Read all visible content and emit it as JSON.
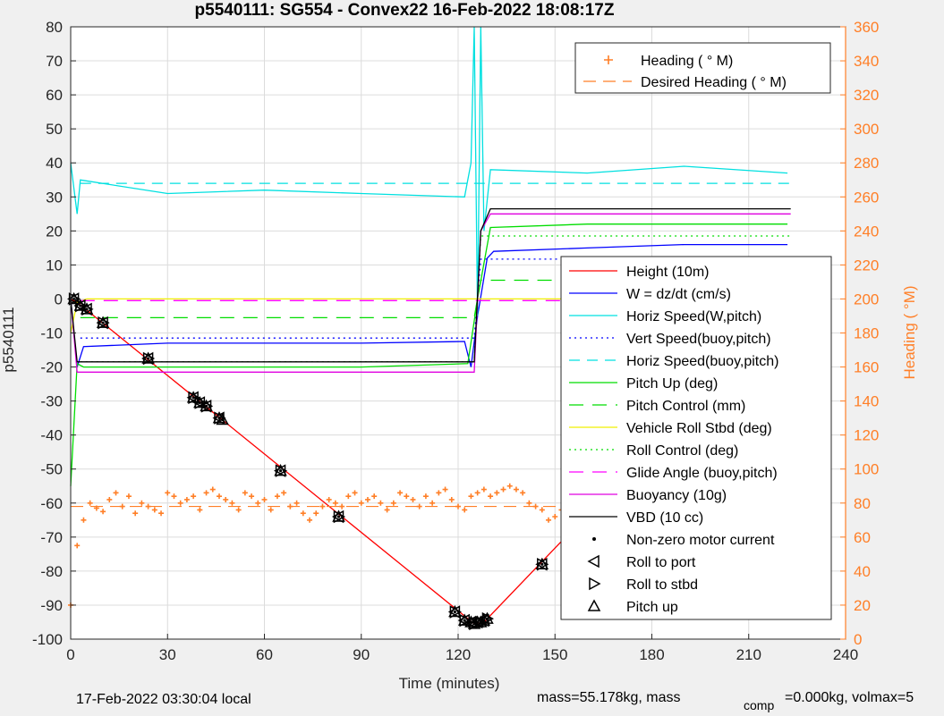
{
  "footer": {
    "local_time": "17-Feb-2022 03:30:04 local",
    "mass_text": "mass=55.178kg, mass",
    "comp_sub": "comp",
    "volmax_text": "=0.000kg, volmax=5"
  },
  "chart_data": {
    "type": "line",
    "title": "p5540111: SG554 - Convex22 16-Feb-2022 18:08:17Z",
    "xlabel": "Time (minutes)",
    "ylabel": "p5540111",
    "y2label": "Heading (  °M)",
    "xlim": [
      0,
      240
    ],
    "ylim": [
      -100,
      80
    ],
    "y2lim": [
      0,
      360
    ],
    "xticks": [
      "0",
      "30",
      "60",
      "90",
      "120",
      "150",
      "180",
      "210",
      "240"
    ],
    "yticks": [
      "80",
      "70",
      "60",
      "50",
      "40",
      "30",
      "20",
      "10",
      "0",
      "-10",
      "-20",
      "-30",
      "-40",
      "-50",
      "-60",
      "-70",
      "-80",
      "-90",
      "-100"
    ],
    "y2ticks": [
      "360",
      "340",
      "320",
      "300",
      "280",
      "260",
      "240",
      "220",
      "200",
      "180",
      "160",
      "140",
      "120",
      "100",
      "80",
      "60",
      "40",
      "20",
      "0"
    ],
    "grid": true,
    "colors": {
      "height": "#ff0000",
      "w": "#0000ff",
      "horiz_speed": "#00e0e0",
      "pitch": "#00dd00",
      "roll": "#f0f000",
      "glide": "#ff00ff",
      "buoyancy": "#e000e0",
      "vbd": "#000000",
      "heading": "#ff7f27",
      "right_axis": "#ff7f27"
    },
    "legend_top": {
      "placement": "top-right",
      "entries": [
        "Heading (  ° M)",
        "Desired Heading (    ° M)"
      ]
    },
    "legend_main": {
      "placement": "center-right",
      "entries": [
        "Height (10m)",
        "W = dz/dt (cm/s)",
        "Horiz Speed(W,pitch)",
        "Vert Speed(buoy,pitch)",
        "Horiz Speed(buoy,pitch)",
        "Pitch Up (deg)",
        "Pitch Control (mm)",
        "Vehicle Roll Stbd (deg)",
        "Roll Control (deg)",
        "Glide Angle (buoy,pitch)",
        "Buoyancy (10g)",
        "VBD (10 cc)",
        "Non-zero motor current",
        "Roll to port",
        "Roll to stbd",
        "Pitch up"
      ]
    },
    "series": [
      {
        "name": "Height (10m)",
        "x": [
          0,
          2,
          125,
          128,
          223
        ],
        "y": [
          0,
          -1,
          -95.5,
          -95,
          -1
        ]
      },
      {
        "name": "W = dz/dt (cm/s)",
        "x": [
          0,
          2,
          4,
          30,
          60,
          90,
          122,
          124,
          126,
          129,
          131,
          160,
          190,
          222
        ],
        "y": [
          0,
          -20,
          -14,
          -13,
          -13,
          -13,
          -12.5,
          -20,
          -5,
          12,
          14,
          15,
          16,
          16
        ]
      },
      {
        "name": "Horiz Speed(W,pitch)",
        "x": [
          0,
          2,
          3,
          30,
          60,
          90,
          122,
          124,
          125,
          126,
          127,
          128,
          130,
          160,
          190,
          222
        ],
        "y": [
          40,
          25,
          35,
          31,
          32,
          31,
          30,
          40,
          80,
          -5,
          80,
          20,
          38,
          37,
          39,
          37
        ]
      },
      {
        "name": "Vert Speed(buoy,pitch)",
        "x": [
          3,
          125,
          127,
          223
        ],
        "y": [
          -11.5,
          -11.5,
          11.7,
          11.7
        ]
      },
      {
        "name": "Horiz Speed(buoy,pitch)",
        "x": [
          3,
          125,
          127,
          223
        ],
        "y": [
          34,
          34,
          34,
          34
        ]
      },
      {
        "name": "Pitch Up (deg)",
        "x": [
          0,
          2,
          4,
          30,
          60,
          90,
          123,
          126,
          130,
          160,
          190,
          222
        ],
        "y": [
          -55,
          -19,
          -20,
          -20,
          -20,
          -20,
          -19,
          0,
          21,
          22,
          22,
          22
        ]
      },
      {
        "name": "Pitch Control (mm)",
        "x": [
          3,
          125,
          127,
          223
        ],
        "y": [
          -5.5,
          -5.5,
          5.5,
          5.5
        ]
      },
      {
        "name": "Vehicle Roll Stbd (deg)",
        "x": [
          0,
          2,
          5,
          30,
          60,
          90,
          120,
          125,
          130,
          160,
          190,
          222
        ],
        "y": [
          -10,
          -1,
          0,
          0,
          0,
          0,
          0,
          0,
          0,
          0,
          0,
          0
        ]
      },
      {
        "name": "Roll Control (deg)",
        "x": [
          3,
          125,
          127,
          223
        ],
        "y": [
          -18.5,
          -18.5,
          18.5,
          18.5
        ]
      },
      {
        "name": "Glide Angle (buoy,pitch)",
        "x": [
          3,
          223
        ],
        "y": [
          -0.5,
          -0.5
        ]
      },
      {
        "name": "Buoyancy (10g)",
        "x": [
          0,
          2,
          125,
          127,
          130,
          223
        ],
        "y": [
          0,
          -21.5,
          -21.5,
          20,
          25,
          25
        ]
      },
      {
        "name": "VBD (10 cc)",
        "x": [
          0,
          2,
          3,
          125,
          127,
          130,
          223
        ],
        "y": [
          0,
          -18.5,
          -18.5,
          -18.5,
          20,
          26.5,
          26.5
        ]
      }
    ],
    "heading": {
      "name": "Heading (  ° M)",
      "x": [
        0,
        2,
        4,
        6,
        8,
        10,
        12,
        14,
        16,
        18,
        20,
        22,
        24,
        26,
        28,
        30,
        32,
        34,
        36,
        38,
        40,
        42,
        44,
        46,
        48,
        50,
        52,
        54,
        56,
        58,
        60,
        62,
        64,
        66,
        68,
        70,
        72,
        74,
        76,
        78,
        80,
        82,
        84,
        86,
        88,
        90,
        92,
        94,
        96,
        98,
        100,
        102,
        104,
        106,
        108,
        110,
        112,
        114,
        116,
        118,
        120,
        122,
        124,
        126,
        128,
        130,
        132,
        134,
        136,
        138,
        140,
        142,
        144,
        146,
        148,
        150,
        152,
        154,
        156,
        158,
        160,
        162,
        164,
        166,
        168,
        170,
        172,
        174,
        176,
        178,
        180,
        182,
        184,
        186,
        188,
        190,
        192,
        194,
        196,
        198,
        200,
        202,
        204,
        206,
        208,
        210,
        212,
        214,
        216,
        218,
        220,
        222
      ],
      "y": [
        20,
        55,
        70,
        80,
        77,
        75,
        82,
        86,
        78,
        84,
        74,
        80,
        78,
        76,
        74,
        86,
        84,
        80,
        82,
        84,
        76,
        86,
        88,
        84,
        82,
        80,
        76,
        86,
        84,
        80,
        82,
        76,
        84,
        86,
        78,
        80,
        74,
        70,
        74,
        78,
        82,
        80,
        78,
        84,
        86,
        80,
        82,
        84,
        80,
        76,
        80,
        86,
        84,
        82,
        78,
        84,
        80,
        86,
        88,
        82,
        78,
        76,
        84,
        86,
        88,
        84,
        86,
        88,
        90,
        88,
        86,
        80,
        78,
        76,
        70,
        72,
        76,
        78,
        70,
        74,
        84,
        86,
        84,
        86,
        88,
        84,
        86,
        88,
        84,
        82,
        84,
        86,
        84,
        86,
        88,
        86,
        82,
        84,
        80,
        84,
        86,
        84,
        82,
        86,
        84,
        86,
        82,
        84,
        82,
        76,
        80,
        88
      ]
    },
    "desired_heading": {
      "name": "Desired Heading (    ° M)",
      "x": [
        0,
        223
      ],
      "y": [
        78,
        78
      ]
    },
    "markers": {
      "pitch_up": [
        [
          1,
          0
        ],
        [
          3,
          -2
        ],
        [
          5,
          -3
        ],
        [
          10,
          -7
        ],
        [
          24,
          -17.5
        ],
        [
          38,
          -29
        ],
        [
          40,
          -30.5
        ],
        [
          42,
          -31.5
        ],
        [
          46,
          -35
        ],
        [
          47,
          -35.5
        ],
        [
          65,
          -50.5
        ],
        [
          83,
          -64
        ],
        [
          119,
          -92
        ],
        [
          122,
          -94.5
        ],
        [
          124,
          -95
        ],
        [
          125,
          -95.5
        ],
        [
          126,
          -95
        ],
        [
          127,
          -95
        ],
        [
          128,
          -94.5
        ],
        [
          129,
          -94
        ],
        [
          146,
          -78
        ],
        [
          157,
          -67.5
        ],
        [
          168,
          -55.5
        ],
        [
          179,
          -44
        ],
        [
          186,
          -37.5
        ],
        [
          196,
          -27.5
        ],
        [
          200,
          -22
        ],
        [
          202,
          -20
        ],
        [
          204,
          -18.5
        ],
        [
          213,
          -8.5
        ],
        [
          221,
          -1.5
        ]
      ],
      "roll_port": [
        [
          1,
          0
        ],
        [
          3,
          -2
        ],
        [
          5,
          -3
        ],
        [
          10,
          -7
        ],
        [
          24,
          -17.5
        ],
        [
          38,
          -29
        ],
        [
          40,
          -30.5
        ],
        [
          42,
          -31.5
        ],
        [
          46,
          -35
        ],
        [
          65,
          -50.5
        ],
        [
          83,
          -64
        ],
        [
          119,
          -92
        ],
        [
          122,
          -94.5
        ],
        [
          124,
          -95
        ],
        [
          126,
          -95
        ],
        [
          128,
          -94.5
        ],
        [
          146,
          -78
        ],
        [
          157,
          -67.5
        ],
        [
          168,
          -55.5
        ],
        [
          179,
          -44
        ],
        [
          186,
          -37.5
        ],
        [
          196,
          -27.5
        ],
        [
          200,
          -22
        ],
        [
          202,
          -20
        ],
        [
          204,
          -18.5
        ],
        [
          213,
          -8.5
        ],
        [
          221,
          -1.5
        ]
      ],
      "roll_stbd": [
        [
          1,
          0
        ],
        [
          3,
          -2
        ],
        [
          5,
          -3
        ],
        [
          10,
          -7
        ],
        [
          24,
          -17.5
        ],
        [
          38,
          -29
        ],
        [
          40,
          -30.5
        ],
        [
          42,
          -31.5
        ],
        [
          46,
          -35
        ],
        [
          65,
          -50.5
        ],
        [
          83,
          -64
        ],
        [
          119,
          -92
        ],
        [
          122,
          -94.5
        ],
        [
          125,
          -95.5
        ],
        [
          127,
          -95
        ],
        [
          129,
          -94
        ],
        [
          146,
          -78
        ],
        [
          157,
          -67.5
        ],
        [
          168,
          -55.5
        ],
        [
          179,
          -44
        ],
        [
          186,
          -37.5
        ],
        [
          196,
          -27.5
        ],
        [
          200,
          -22
        ],
        [
          202,
          -20
        ],
        [
          204,
          -18.5
        ],
        [
          213,
          -8.5
        ],
        [
          221,
          -1.5
        ]
      ]
    }
  }
}
